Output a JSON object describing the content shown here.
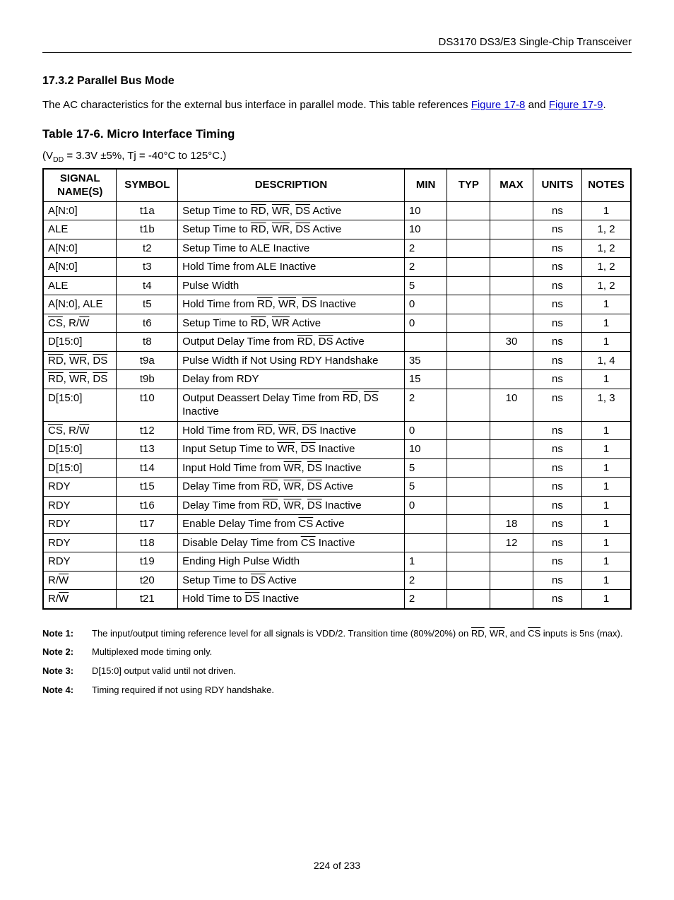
{
  "header": {
    "title": "DS3170 DS3/E3 Single-Chip Transceiver"
  },
  "section": {
    "number": "17.3.2",
    "heading": "Parallel Bus Mode",
    "para_pre": "The AC characteristics for the external bus interface in parallel mode. This table references ",
    "link1": "Figure 17-8",
    "para_mid": " and ",
    "link2": "Figure 17-9",
    "para_post": "."
  },
  "table": {
    "title": "Table 17-6. Micro Interface Timing",
    "conditions_pre": "(V",
    "conditions_sub": "DD",
    "conditions_post": " = 3.3V ±5%, Tj = -40°C to 125°C.)",
    "headers": {
      "signal": "SIGNAL NAME(S)",
      "symbol": "SYMBOL",
      "description": "DESCRIPTION",
      "min": "MIN",
      "typ": "TYP",
      "max": "MAX",
      "units": "UNITS",
      "notes": "NOTES"
    },
    "rows": [
      {
        "sig": [
          {
            "t": "A[N:0]"
          }
        ],
        "sym": "t1a",
        "desc": [
          {
            "t": "Setup Time to "
          },
          {
            "t": "RD",
            "o": 1
          },
          {
            "t": ", "
          },
          {
            "t": "WR",
            "o": 1
          },
          {
            "t": ", "
          },
          {
            "t": "DS",
            "o": 1
          },
          {
            "t": " Active"
          }
        ],
        "min": "10",
        "typ": "",
        "max": "",
        "u": "ns",
        "n": "1"
      },
      {
        "sig": [
          {
            "t": "ALE"
          }
        ],
        "sym": "t1b",
        "desc": [
          {
            "t": "Setup Time to "
          },
          {
            "t": "RD",
            "o": 1
          },
          {
            "t": ", "
          },
          {
            "t": "WR",
            "o": 1
          },
          {
            "t": ", "
          },
          {
            "t": "DS",
            "o": 1
          },
          {
            "t": " Active"
          }
        ],
        "min": "10",
        "typ": "",
        "max": "",
        "u": "ns",
        "n": "1, 2"
      },
      {
        "sig": [
          {
            "t": "A[N:0]"
          }
        ],
        "sym": "t2",
        "desc": [
          {
            "t": "Setup Time to ALE Inactive"
          }
        ],
        "min": "2",
        "typ": "",
        "max": "",
        "u": "ns",
        "n": "1, 2"
      },
      {
        "sig": [
          {
            "t": "A[N:0]"
          }
        ],
        "sym": "t3",
        "desc": [
          {
            "t": "Hold Time from ALE Inactive"
          }
        ],
        "min": "2",
        "typ": "",
        "max": "",
        "u": "ns",
        "n": "1, 2"
      },
      {
        "sig": [
          {
            "t": "ALE"
          }
        ],
        "sym": "t4",
        "desc": [
          {
            "t": "Pulse Width"
          }
        ],
        "min": "5",
        "typ": "",
        "max": "",
        "u": "ns",
        "n": "1, 2"
      },
      {
        "sig": [
          {
            "t": "A[N:0], ALE"
          }
        ],
        "sym": "t5",
        "desc": [
          {
            "t": "Hold Time from "
          },
          {
            "t": "RD",
            "o": 1
          },
          {
            "t": ", "
          },
          {
            "t": "WR",
            "o": 1
          },
          {
            "t": ", "
          },
          {
            "t": "DS",
            "o": 1
          },
          {
            "t": " Inactive"
          }
        ],
        "min": "0",
        "typ": "",
        "max": "",
        "u": "ns",
        "n": "1"
      },
      {
        "sig": [
          {
            "t": "CS",
            "o": 1
          },
          {
            "t": ", R/"
          },
          {
            "t": "W",
            "o": 1
          }
        ],
        "sym": "t6",
        "desc": [
          {
            "t": "Setup Time to "
          },
          {
            "t": "RD",
            "o": 1
          },
          {
            "t": ", "
          },
          {
            "t": "WR",
            "o": 1
          },
          {
            "t": " Active"
          }
        ],
        "min": "0",
        "typ": "",
        "max": "",
        "u": "ns",
        "n": "1"
      },
      {
        "sig": [
          {
            "t": "D[15:0]"
          }
        ],
        "sym": "t8",
        "desc": [
          {
            "t": "Output Delay Time from "
          },
          {
            "t": "RD",
            "o": 1
          },
          {
            "t": ", "
          },
          {
            "t": "DS",
            "o": 1
          },
          {
            "t": " Active"
          }
        ],
        "min": "",
        "typ": "",
        "max": "30",
        "u": "ns",
        "n": "1"
      },
      {
        "sig": [
          {
            "t": "RD",
            "o": 1
          },
          {
            "t": ", "
          },
          {
            "t": "WR",
            "o": 1
          },
          {
            "t": ", "
          },
          {
            "t": "DS",
            "o": 1
          }
        ],
        "sym": "t9a",
        "desc": [
          {
            "t": "Pulse Width if Not Using RDY Handshake"
          }
        ],
        "min": "35",
        "typ": "",
        "max": "",
        "u": "ns",
        "n": "1, 4"
      },
      {
        "sig": [
          {
            "t": "RD",
            "o": 1
          },
          {
            "t": ", "
          },
          {
            "t": "WR",
            "o": 1
          },
          {
            "t": ", "
          },
          {
            "t": "DS",
            "o": 1
          }
        ],
        "sym": "t9b",
        "desc": [
          {
            "t": "Delay from RDY"
          }
        ],
        "min": "15",
        "typ": "",
        "max": "",
        "u": "ns",
        "n": "1"
      },
      {
        "sig": [
          {
            "t": "D[15:0]"
          }
        ],
        "sym": "t10",
        "desc": [
          {
            "t": "Output Deassert Delay Time from "
          },
          {
            "t": "RD",
            "o": 1
          },
          {
            "t": ", "
          },
          {
            "t": "DS",
            "o": 1
          },
          {
            "t": " Inactive"
          }
        ],
        "min": "2",
        "typ": "",
        "max": "10",
        "u": "ns",
        "n": "1, 3"
      },
      {
        "sig": [
          {
            "t": "CS",
            "o": 1
          },
          {
            "t": ", R/"
          },
          {
            "t": "W",
            "o": 1
          }
        ],
        "sym": "t12",
        "desc": [
          {
            "t": "Hold Time from "
          },
          {
            "t": "RD",
            "o": 1
          },
          {
            "t": ", "
          },
          {
            "t": "WR",
            "o": 1
          },
          {
            "t": ", "
          },
          {
            "t": "DS",
            "o": 1
          },
          {
            "t": " Inactive"
          }
        ],
        "min": "0",
        "typ": "",
        "max": "",
        "u": "ns",
        "n": "1"
      },
      {
        "sig": [
          {
            "t": "D[15:0]"
          }
        ],
        "sym": "t13",
        "desc": [
          {
            "t": "Input Setup Time to "
          },
          {
            "t": "WR",
            "o": 1
          },
          {
            "t": ", "
          },
          {
            "t": "DS",
            "o": 1
          },
          {
            "t": " Inactive"
          }
        ],
        "min": "10",
        "typ": "",
        "max": "",
        "u": "ns",
        "n": "1"
      },
      {
        "sig": [
          {
            "t": "D[15:0]"
          }
        ],
        "sym": "t14",
        "desc": [
          {
            "t": "Input Hold Time from "
          },
          {
            "t": "WR",
            "o": 1
          },
          {
            "t": ", "
          },
          {
            "t": "DS",
            "o": 1
          },
          {
            "t": " Inactive"
          }
        ],
        "min": "5",
        "typ": "",
        "max": "",
        "u": "ns",
        "n": "1"
      },
      {
        "sig": [
          {
            "t": "RDY"
          }
        ],
        "sym": "t15",
        "desc": [
          {
            "t": "Delay Time from "
          },
          {
            "t": "RD",
            "o": 1
          },
          {
            "t": ", "
          },
          {
            "t": "WR",
            "o": 1
          },
          {
            "t": ", "
          },
          {
            "t": "DS",
            "o": 1
          },
          {
            "t": " Active"
          }
        ],
        "min": "5",
        "typ": "",
        "max": "",
        "u": "ns",
        "n": "1"
      },
      {
        "sig": [
          {
            "t": "RDY"
          }
        ],
        "sym": "t16",
        "desc": [
          {
            "t": "Delay Time from "
          },
          {
            "t": "RD",
            "o": 1
          },
          {
            "t": ", "
          },
          {
            "t": "WR",
            "o": 1
          },
          {
            "t": ", "
          },
          {
            "t": "DS",
            "o": 1
          },
          {
            "t": " Inactive"
          }
        ],
        "min": "0",
        "typ": "",
        "max": "",
        "u": "ns",
        "n": "1"
      },
      {
        "sig": [
          {
            "t": "RDY"
          }
        ],
        "sym": "t17",
        "desc": [
          {
            "t": "Enable Delay Time from "
          },
          {
            "t": "CS",
            "o": 1
          },
          {
            "t": " Active"
          }
        ],
        "min": "",
        "typ": "",
        "max": "18",
        "u": "ns",
        "n": "1"
      },
      {
        "sig": [
          {
            "t": "RDY"
          }
        ],
        "sym": "t18",
        "desc": [
          {
            "t": "Disable Delay Time from "
          },
          {
            "t": "CS",
            "o": 1
          },
          {
            "t": " Inactive"
          }
        ],
        "min": "",
        "typ": "",
        "max": "12",
        "u": "ns",
        "n": "1"
      },
      {
        "sig": [
          {
            "t": "RDY"
          }
        ],
        "sym": "t19",
        "desc": [
          {
            "t": "Ending High Pulse Width"
          }
        ],
        "min": "1",
        "typ": "",
        "max": "",
        "u": "ns",
        "n": "1"
      },
      {
        "sig": [
          {
            "t": "R/"
          },
          {
            "t": "W",
            "o": 1
          }
        ],
        "sym": "t20",
        "desc": [
          {
            "t": "Setup Time to "
          },
          {
            "t": "DS",
            "o": 1
          },
          {
            "t": " Active"
          }
        ],
        "min": "2",
        "typ": "",
        "max": "",
        "u": "ns",
        "n": "1"
      },
      {
        "sig": [
          {
            "t": "R/"
          },
          {
            "t": "W",
            "o": 1
          }
        ],
        "sym": "t21",
        "desc": [
          {
            "t": "Hold Time to "
          },
          {
            "t": "DS",
            "o": 1
          },
          {
            "t": " Inactive"
          }
        ],
        "min": "2",
        "typ": "",
        "max": "",
        "u": "ns",
        "n": "1"
      }
    ]
  },
  "notes": [
    {
      "label": "Note 1:",
      "parts": [
        {
          "t": "The input/output timing reference level for all signals is VDD/2. Transition time (80%/20%) on "
        },
        {
          "t": "RD",
          "o": 1
        },
        {
          "t": ", "
        },
        {
          "t": "WR",
          "o": 1
        },
        {
          "t": ", and "
        },
        {
          "t": "CS",
          "o": 1
        },
        {
          "t": " inputs is 5ns (max)."
        }
      ]
    },
    {
      "label": "Note 2:",
      "parts": [
        {
          "t": "Multiplexed mode timing only."
        }
      ]
    },
    {
      "label": "Note 3:",
      "parts": [
        {
          "t": "D[15:0] output valid until not driven."
        }
      ]
    },
    {
      "label": "Note 4:",
      "parts": [
        {
          "t": "Timing required if not using RDY handshake."
        }
      ]
    }
  ],
  "footer": {
    "pagenum": "224 of 233"
  }
}
